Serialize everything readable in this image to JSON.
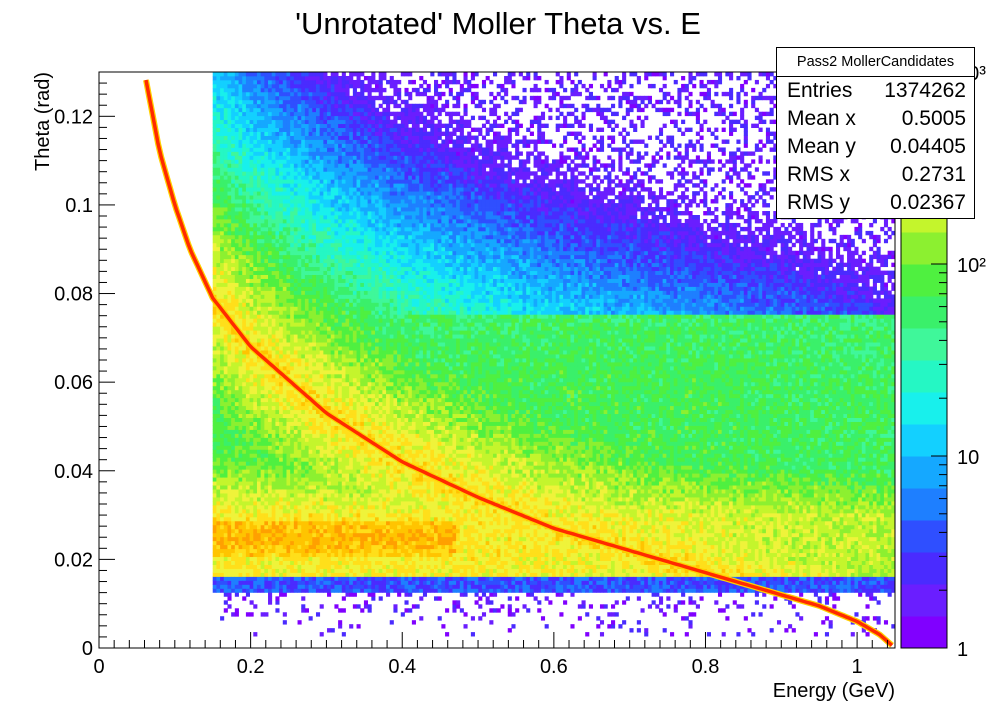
{
  "chart_data": {
    "type": "heatmap",
    "title": "'Unrotated' Moller Theta vs. E",
    "xlabel": "Energy (GeV)",
    "ylabel": "Theta (rad)",
    "xlim": [
      0,
      1.05
    ],
    "ylim": [
      0,
      0.13
    ],
    "x_ticks": [
      0,
      0.2,
      0.4,
      0.6,
      0.8,
      1
    ],
    "x_tick_labels": [
      "0",
      "0.2",
      "0.4",
      "0.6",
      "0.8",
      "1"
    ],
    "y_ticks": [
      0,
      0.02,
      0.04,
      0.06,
      0.08,
      0.1,
      0.12
    ],
    "y_tick_labels": [
      "0",
      "0.02",
      "0.04",
      "0.06",
      "0.08",
      "0.1",
      "0.12"
    ],
    "z_scale": "log",
    "z_range": [
      1,
      1000
    ],
    "z_ticks": [
      1,
      10,
      100,
      1000
    ],
    "z_tick_labels": [
      "1",
      "10",
      "10²",
      "10³"
    ],
    "data_region": {
      "x_min": 0.15,
      "x_max": 1.05,
      "y_min": 0.0,
      "y_max": 0.13
    },
    "dense_band": {
      "x_range": [
        0.15,
        0.45
      ],
      "y_center": 0.025
    },
    "kinematic_curve": {
      "x": [
        0.05,
        0.06,
        0.08,
        0.1,
        0.12,
        0.15,
        0.2,
        0.3,
        0.4,
        0.5,
        0.6,
        0.7,
        0.8,
        0.9,
        0.95,
        1.0,
        1.03,
        1.05
      ],
      "y": [
        0.135,
        0.13,
        0.112,
        0.1,
        0.09,
        0.079,
        0.068,
        0.053,
        0.042,
        0.034,
        0.027,
        0.022,
        0.017,
        0.012,
        0.0095,
        0.006,
        0.003,
        0.0
      ],
      "color": "#ff2a00"
    }
  },
  "stats": {
    "name": "Pass2 MollerCandidates",
    "rows": [
      {
        "key": "Entries",
        "value": "1374262"
      },
      {
        "key": "Mean x",
        "value": "0.5005"
      },
      {
        "key": "Mean y",
        "value": "0.04405"
      },
      {
        "key": "RMS x",
        "value": "0.2731"
      },
      {
        "key": "RMS y",
        "value": "0.02367"
      }
    ]
  }
}
